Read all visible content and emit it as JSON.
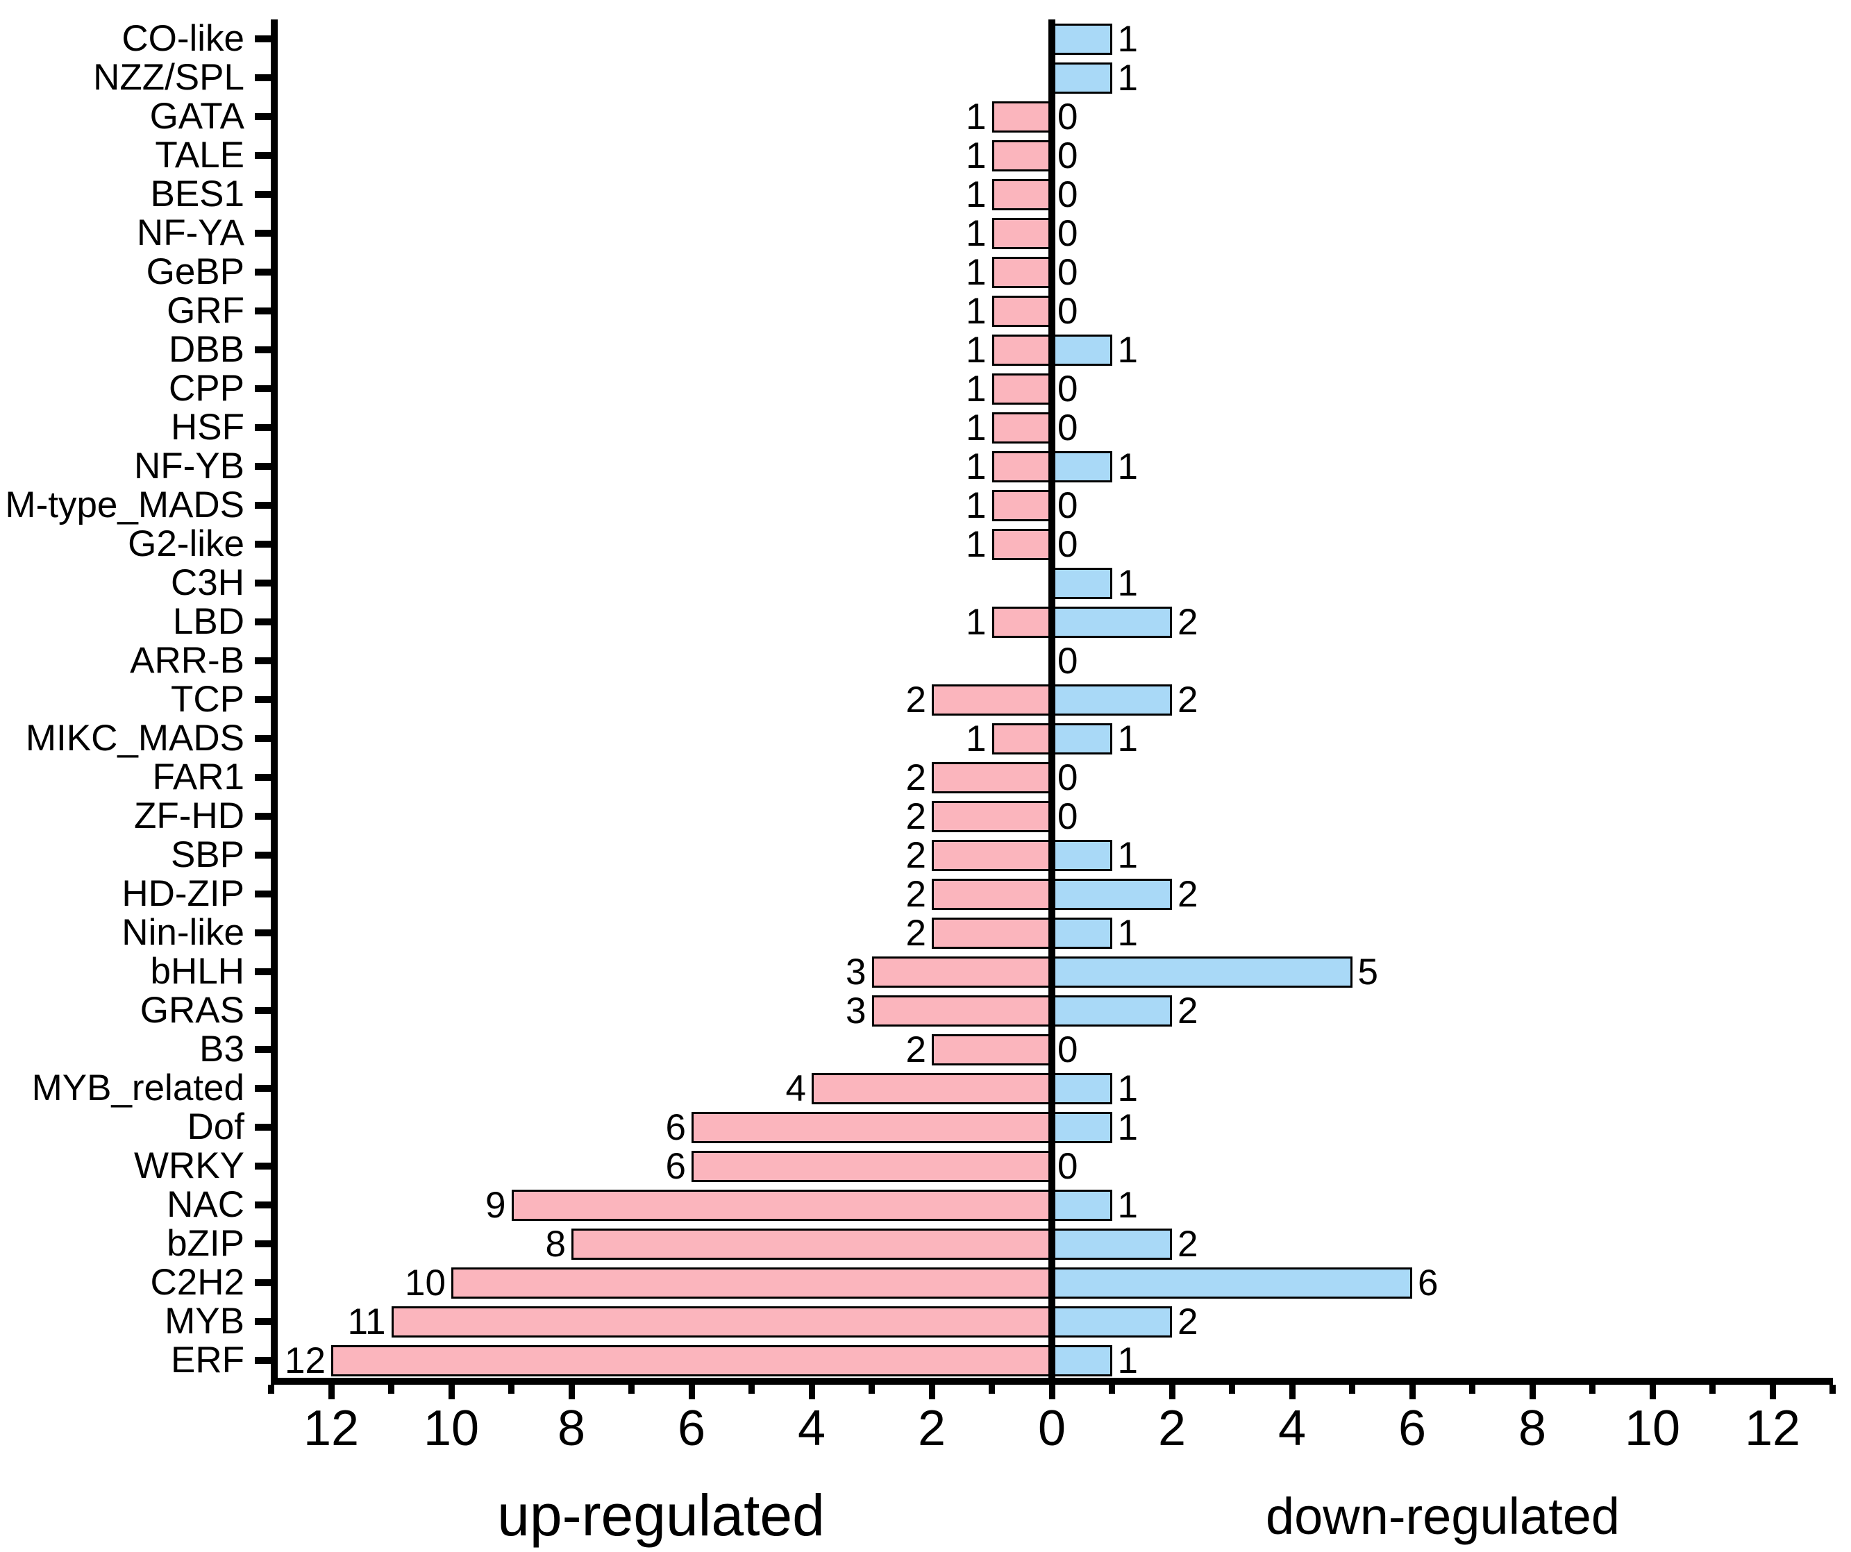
{
  "chart_data": {
    "type": "bar",
    "orientation": "diverging-horizontal",
    "title": "",
    "categories": [
      "CO-like",
      "NZZ/SPL",
      "GATA",
      "TALE",
      "BES1",
      "NF-YA",
      "GeBP",
      "GRF",
      "DBB",
      "CPP",
      "HSF",
      "NF-YB",
      "M-type_MADS",
      "G2-like",
      "C3H",
      "LBD",
      "ARR-B",
      "TCP",
      "MIKC_MADS",
      "FAR1",
      "ZF-HD",
      "SBP",
      "HD-ZIP",
      "Nin-like",
      "bHLH",
      "GRAS",
      "B3",
      "MYB_related",
      "Dof",
      "WRKY",
      "NAC",
      "bZIP",
      "C2H2",
      "MYB",
      "ERF"
    ],
    "series": [
      {
        "name": "up-regulated",
        "side": "left",
        "values": [
          0,
          0,
          1,
          1,
          1,
          1,
          1,
          1,
          1,
          1,
          1,
          1,
          1,
          1,
          0,
          1,
          0,
          2,
          1,
          2,
          2,
          2,
          2,
          2,
          3,
          3,
          2,
          4,
          6,
          6,
          9,
          8,
          10,
          11,
          12
        ]
      },
      {
        "name": "down-regulated",
        "side": "right",
        "values": [
          1,
          1,
          0,
          0,
          0,
          0,
          0,
          0,
          1,
          0,
          0,
          1,
          0,
          0,
          1,
          2,
          0,
          2,
          1,
          0,
          0,
          1,
          2,
          1,
          5,
          2,
          0,
          1,
          1,
          0,
          1,
          2,
          6,
          2,
          1
        ]
      }
    ],
    "value_label_rule": "left labels shown only when value > 0; right labels always shown including 0",
    "xlabel_left": "up-regulated",
    "xlabel_right": "down-regulated",
    "axis": {
      "xlim_each_side": [
        0,
        13
      ],
      "major_ticks": [
        0,
        2,
        4,
        6,
        8,
        10,
        12
      ],
      "minor_ticks": [
        1,
        3,
        5,
        7,
        9,
        11,
        13
      ],
      "grid": false
    },
    "colors": {
      "up_bar_fill": "#FBB5BD",
      "down_bar_fill": "#A9D9F7",
      "bar_border": "#000000",
      "axis": "#000000"
    }
  }
}
